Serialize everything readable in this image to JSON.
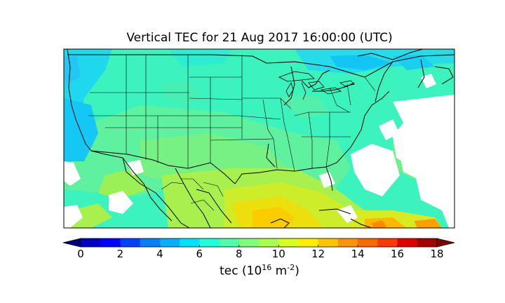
{
  "title": "Vertical TEC for  21 Aug 2017 16:00:00  (UTC)",
  "colorbar": {
    "label_main": "tec (10",
    "label_exp1": "16",
    "label_mid": " m",
    "label_exp2": "-2",
    "label_end": ")",
    "ticks": [
      "0",
      "2",
      "4",
      "6",
      "8",
      "10",
      "12",
      "14",
      "16",
      "18"
    ],
    "tick_values": [
      0,
      2,
      4,
      6,
      8,
      10,
      12,
      14,
      16,
      18
    ],
    "range": [
      -1,
      19
    ],
    "colors": [
      "#00007f",
      "#0000c4",
      "#0000ff",
      "#0040ff",
      "#0080ff",
      "#00b0ff",
      "#00e0ff",
      "#20ffd7",
      "#4dffaa",
      "#7dff7a",
      "#aaff4d",
      "#d7ff1f",
      "#ffee00",
      "#ffc400",
      "#ff9400",
      "#ff6800",
      "#ff3800",
      "#e00000",
      "#a50000",
      "#7f0000"
    ]
  },
  "map": {
    "region": "Continental United States, southern Canada, Mexico",
    "no_data_color": "#ffffff",
    "border_color": "#000000"
  }
}
